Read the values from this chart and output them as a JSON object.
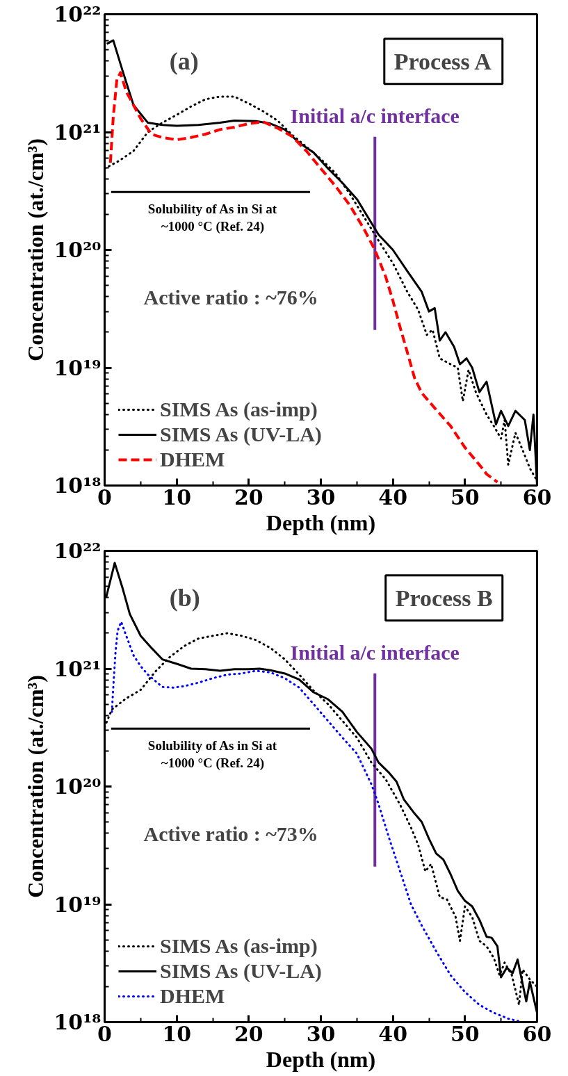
{
  "chart_data": [
    {
      "type": "line",
      "title": "Process A",
      "xlabel": "Depth (nm)",
      "ylabel": "Concentration (at./cm³)",
      "log": "y",
      "xlim": [
        0,
        60
      ],
      "ylim": [
        1e+18,
        1e+22
      ],
      "xticks": [
        0,
        10,
        20,
        30,
        40,
        50,
        60
      ],
      "yticks": [
        {
          "value": 1e+18,
          "label": "10¹⁸"
        },
        {
          "value": 1e+19,
          "label": "10¹⁹"
        },
        {
          "value": 1e+20,
          "label": "10²⁰"
        },
        {
          "value": 1e+21,
          "label": "10²¹"
        },
        {
          "value": 1e+22,
          "label": "10²²"
        }
      ],
      "grid": false,
      "legend": "bottom left",
      "marker": "none",
      "annotations": [
        "(a)",
        "Active ratio : ~76%"
      ],
      "ref_lines": [
        {
          "axis": "x",
          "value": 37.5,
          "label": "Initial a/c interface",
          "color": "#7030a0",
          "line_style": "solid"
        },
        {
          "axis": "y",
          "value": 3.1e+20,
          "label": "Solubility of As in Si at ~1000 °C (Ref. 24)",
          "color": "#000000",
          "line_style": "solid"
        }
      ],
      "series": [
        {
          "name": "SIMS As (as-imp)",
          "color": "#000000",
          "line_style": "dotted",
          "x": [
            0,
            2,
            4,
            6,
            8,
            10,
            12,
            14,
            16,
            18,
            20,
            22,
            24,
            26,
            28,
            30,
            32,
            34,
            36,
            38,
            40,
            42,
            43.5,
            44.7,
            45.5,
            46.5,
            48,
            49,
            49.7,
            50.5,
            51.5,
            53,
            54,
            55,
            55.5,
            56,
            57,
            58,
            59,
            60
          ],
          "values": [
            4.9e+20,
            5.7e+20,
            6.9e+20,
            1e+21,
            1.2e+21,
            1.4e+21,
            1.65e+21,
            1.9e+21,
            2e+21,
            2e+21,
            1.75e+21,
            1.5e+21,
            1.25e+21,
            9.5e+20,
            7.5e+20,
            5.9e+20,
            4.5e+20,
            3e+20,
            1.9e+20,
            1.2e+20,
            7.7e+19,
            4.4e+19,
            3.1e+19,
            1.9e+19,
            2.1e+19,
            1.2e+19,
            1.07e+19,
            1e+19,
            5.2e+18,
            9.6e+18,
            6.2e+18,
            4e+18,
            3.2e+18,
            2.5e+18,
            3.6e+18,
            1.5e+18,
            2.8e+18,
            2e+18,
            1.4e+18,
            1.1e+18
          ]
        },
        {
          "name": "SIMS As (UV-LA)",
          "color": "#000000",
          "line_style": "solid",
          "x": [
            0.3,
            1.2,
            2.5,
            4,
            6,
            8,
            10,
            13,
            16,
            18,
            21,
            23,
            25,
            27,
            29,
            31,
            33,
            35,
            37,
            38,
            40,
            42,
            44,
            45,
            45.8,
            46.5,
            47.3,
            48.5,
            49.3,
            50.2,
            51,
            52,
            53,
            54.3,
            55,
            56,
            57,
            58.3,
            59,
            59.5,
            60
          ],
          "values": [
            5.6e+21,
            6e+21,
            3.3e+21,
            1.7e+21,
            1.2e+21,
            1.15e+21,
            1.13e+21,
            1.15e+21,
            1.2e+21,
            1.25e+21,
            1.24e+21,
            1.18e+21,
            1.05e+21,
            8.1e+20,
            6.7e+20,
            4.9e+20,
            3.7e+20,
            2.7e+20,
            1.7e+20,
            1.35e+20,
            1e+20,
            6.6e+19,
            4.4e+19,
            3e+19,
            3.2e+19,
            1.7e+19,
            2e+19,
            1.5e+19,
            1.07e+19,
            1.2e+19,
            1e+19,
            6.2e+18,
            7.6e+18,
            3.3e+18,
            4.3e+18,
            3.2e+18,
            4.3e+18,
            3.6e+18,
            2e+18,
            4e+18,
            1e+18
          ]
        },
        {
          "name": "DHEM",
          "color": "#ff0000",
          "line_style": "dashed",
          "x": [
            0.8,
            1.2,
            1.7,
            2.2,
            3,
            4,
            5,
            6.5,
            8,
            10,
            12,
            14,
            16,
            18,
            20,
            22,
            24,
            26,
            28,
            30,
            32,
            34,
            36,
            37.5,
            39,
            40,
            41,
            42,
            43,
            44,
            46,
            48,
            50,
            52,
            53,
            54.5
          ],
          "values": [
            5.5e+20,
            1.35e+21,
            2.8e+21,
            3.2e+21,
            2.2e+21,
            1.7e+21,
            1.3e+21,
            9.6e+20,
            9e+20,
            8.6e+20,
            9e+20,
            9.6e+20,
            1.05e+21,
            1.1e+21,
            1.18e+21,
            1.22e+21,
            1.08e+21,
            9.2e+20,
            6.9e+20,
            4.9e+20,
            3.5e+20,
            2.4e+20,
            1.5e+20,
            1e+20,
            5.9e+19,
            3.7e+19,
            2.2e+19,
            1.35e+19,
            8.2e+18,
            6.1e+18,
            4.4e+18,
            3.2e+18,
            2.1e+18,
            1.5e+18,
            1.25e+18,
            1.07e+18
          ]
        }
      ]
    },
    {
      "type": "line",
      "title": "Process B",
      "xlabel": "Depth (nm)",
      "ylabel": "Concentration (at./cm³)",
      "log": "y",
      "xlim": [
        0,
        60
      ],
      "ylim": [
        1e+18,
        1e+22
      ],
      "xticks": [
        0,
        10,
        20,
        30,
        40,
        50,
        60
      ],
      "yticks": [
        {
          "value": 1e+18,
          "label": "10¹⁸"
        },
        {
          "value": 1e+19,
          "label": "10¹⁹"
        },
        {
          "value": 1e+20,
          "label": "10²⁰"
        },
        {
          "value": 1e+21,
          "label": "10²¹"
        },
        {
          "value": 1e+22,
          "label": "10²²"
        }
      ],
      "grid": false,
      "legend": "bottom left",
      "marker": "none",
      "annotations": [
        "(b)",
        "Active ratio : ~73%"
      ],
      "ref_lines": [
        {
          "axis": "x",
          "value": 37.5,
          "label": "Initial a/c interface",
          "color": "#7030a0",
          "line_style": "solid"
        },
        {
          "axis": "y",
          "value": 3.1e+20,
          "label": "Solubility of As in Si at ~1000 °C (Ref. 24)",
          "color": "#000000",
          "line_style": "solid"
        }
      ],
      "series": [
        {
          "name": "SIMS As (as-imp)",
          "color": "#000000",
          "line_style": "dotted",
          "x": [
            0,
            1,
            3,
            5,
            7,
            9,
            11,
            13,
            15,
            17,
            19,
            21,
            23,
            25,
            27,
            29,
            31,
            33,
            35,
            37,
            39,
            41,
            42.5,
            43.5,
            44.5,
            45.3,
            46.5,
            47.5,
            48.7,
            49.3,
            50,
            51,
            52,
            53,
            54,
            54.8,
            55.5,
            56.5,
            57.5,
            58,
            59,
            60
          ],
          "values": [
            3.2e+20,
            4.5e+20,
            5.6e+20,
            6.6e+20,
            9.4e+20,
            1.25e+21,
            1.55e+21,
            1.8e+21,
            1.9e+21,
            2e+21,
            1.9e+21,
            1.75e+21,
            1.5e+21,
            1.2e+21,
            8.9e+20,
            6.5e+20,
            5e+20,
            3.6e+20,
            2.6e+20,
            1.6e+20,
            1.15e+20,
            7e+19,
            4.5e+19,
            3.2e+19,
            1.9e+19,
            2.2e+19,
            1.15e+19,
            1.1e+19,
            7.8e+18,
            4.9e+18,
            9.6e+18,
            7.8e+18,
            4.9e+18,
            4.4e+18,
            3.5e+18,
            2.5e+18,
            3.2e+18,
            2.5e+18,
            1.4e+18,
            2.8e+18,
            2.3e+18,
            2e+18
          ]
        },
        {
          "name": "SIMS As (UV-LA)",
          "color": "#000000",
          "line_style": "solid",
          "x": [
            0.2,
            1.4,
            2.5,
            3.5,
            5,
            6.5,
            8,
            10,
            12,
            14,
            16,
            18,
            20,
            21.5,
            23,
            25,
            27,
            29,
            31,
            33,
            35,
            37,
            38,
            39.5,
            40.5,
            41.5,
            43,
            44,
            45,
            46,
            47,
            48,
            49,
            50,
            51,
            52,
            53,
            53.7,
            54.5,
            55,
            55.8,
            56.6,
            57.3,
            58.5,
            59,
            60
          ],
          "values": [
            4e+21,
            7.9e+21,
            4.8e+21,
            2.9e+21,
            1.9e+21,
            1.5e+21,
            1.2e+21,
            1.1e+21,
            1e+21,
            9.9e+20,
            9.6e+20,
            9.9e+20,
            9.9e+20,
            1e+21,
            9.7e+20,
            9.1e+20,
            8.1e+20,
            6.3e+20,
            5.5e+20,
            4.3e+20,
            2.9e+20,
            2.1e+20,
            1.6e+20,
            1.3e+20,
            1.1e+20,
            7.8e+19,
            5.9e+19,
            5e+19,
            3.6e+19,
            2.7e+19,
            2.4e+19,
            1.8e+19,
            1.3e+19,
            1.07e+19,
            9.6e+18,
            7.4e+18,
            5.3e+18,
            5.2e+18,
            4.4e+18,
            2.4e+18,
            2.9e+18,
            2.6e+18,
            3.4e+18,
            1.5e+18,
            2.2e+18,
            1.2e+18
          ]
        },
        {
          "name": "DHEM",
          "color": "#0000ff",
          "line_style": "dotted",
          "x": [
            1,
            1.2,
            1.5,
            1.8,
            2.3,
            3,
            4,
            5,
            6,
            8,
            9.5,
            11,
            13,
            15,
            17,
            19,
            21,
            23,
            25,
            27,
            29,
            31,
            33,
            35,
            37,
            38,
            39.5,
            41,
            42.5,
            44,
            46,
            48,
            50,
            52,
            54,
            56,
            58
          ],
          "values": [
            4.3e+20,
            6.9e+20,
            1.35e+21,
            2.1e+21,
            2.5e+21,
            1.9e+21,
            1.3e+21,
            1.05e+21,
            8.9e+20,
            7e+20,
            6.9e+20,
            7.1e+20,
            7.6e+20,
            8.3e+20,
            8.9e+20,
            9.1e+20,
            9.6e+20,
            9.3e+20,
            8.3e+20,
            6.9e+20,
            5e+20,
            3.6e+20,
            2.6e+20,
            1.9e+20,
            1.05e+20,
            7.1e+19,
            3.6e+19,
            1.9e+19,
            1e+19,
            6.6e+18,
            4e+18,
            2.5e+18,
            1.8e+18,
            1.4e+18,
            1.2e+18,
            1.07e+18,
            1e+18
          ]
        }
      ]
    }
  ]
}
